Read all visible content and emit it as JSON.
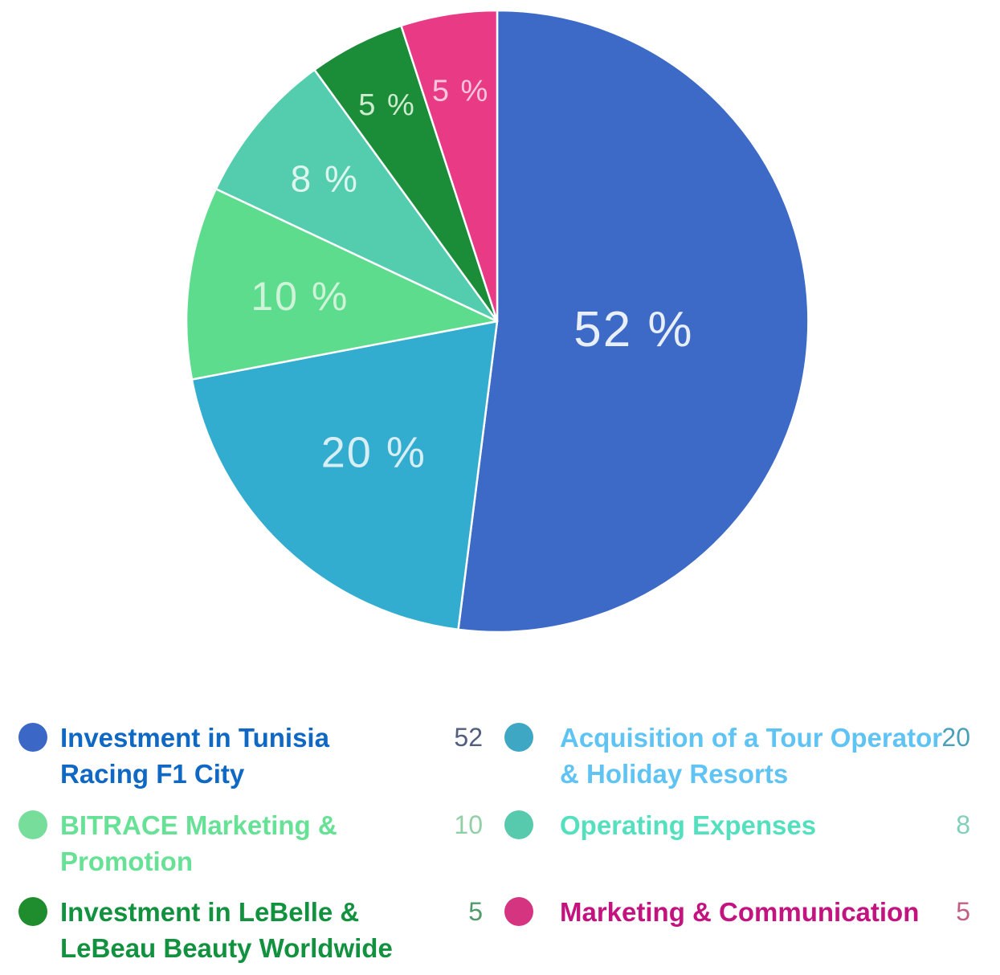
{
  "chart_data": {
    "type": "pie",
    "title": "",
    "unit_suffix": " %",
    "start_angle_deg": 0,
    "direction": "clockwise",
    "legend_position": "bottom",
    "slices": [
      {
        "label": "Investment in Tunisia Racing F1 City",
        "value": 52,
        "display": "52 %",
        "color": "#3c6ac6",
        "label_color": "#e8eff9",
        "label_r_frac": 0.44,
        "label_font_px": 62
      },
      {
        "label": "Acquisition of a Tour Operator & Holiday Resorts",
        "value": 20,
        "display": "20 %",
        "color": "#32add0",
        "label_color": "#d8eef5",
        "label_r_frac": 0.58,
        "label_font_px": 54
      },
      {
        "label": "BITRACE Marketing & Promotion",
        "value": 10,
        "display": "10 %",
        "color": "#5edc8d",
        "label_color": "#cff3d9",
        "label_r_frac": 0.64,
        "label_font_px": 50
      },
      {
        "label": "Operating Expenses",
        "value": 8,
        "display": "8 %",
        "color": "#54ccae",
        "label_color": "#dcf5ef",
        "label_r_frac": 0.72,
        "label_font_px": 46
      },
      {
        "label": "Investment in LeBelle & LeBeau Beauty Worldwide",
        "value": 5,
        "display": "5 %",
        "color": "#1b8d38",
        "label_color": "#cdebce",
        "label_r_frac": 0.78,
        "label_font_px": 38
      },
      {
        "label": "Marketing & Communication",
        "value": 5,
        "display": "5 %",
        "color": "#e93a86",
        "label_color": "#f6c6dd",
        "label_r_frac": 0.75,
        "label_font_px": 38
      }
    ]
  },
  "legend": {
    "items": [
      {
        "label": "Investment in Tunisia Racing F1 City",
        "value": "52",
        "dot_color": "#3b67c6",
        "label_color": "#0f68c4",
        "value_color": "#525e7e"
      },
      {
        "label": "BITRACE Marketing & Promotion",
        "value": "10",
        "dot_color": "#76dd9b",
        "label_color": "#66e195",
        "value_color": "#92cfa6"
      },
      {
        "label": "Investment in LeBelle & LeBeau Beauty Worldwide",
        "value": "5",
        "dot_color": "#1f8c2d",
        "label_color": "#12913e",
        "value_color": "#4f9a68"
      },
      {
        "label": "Acquisition of a Tour Operator & Holiday Resorts",
        "value": "20",
        "dot_color": "#3ea7c3",
        "label_color": "#5fc3f4",
        "value_color": "#4aa0b8"
      },
      {
        "label": "Operating Expenses",
        "value": "8",
        "dot_color": "#57c9ad",
        "label_color": "#54e0be",
        "value_color": "#82cfbb"
      },
      {
        "label": "Marketing & Communication",
        "value": "5",
        "dot_color": "#d53480",
        "label_color": "#c3137f",
        "value_color": "#c35f84"
      }
    ]
  }
}
